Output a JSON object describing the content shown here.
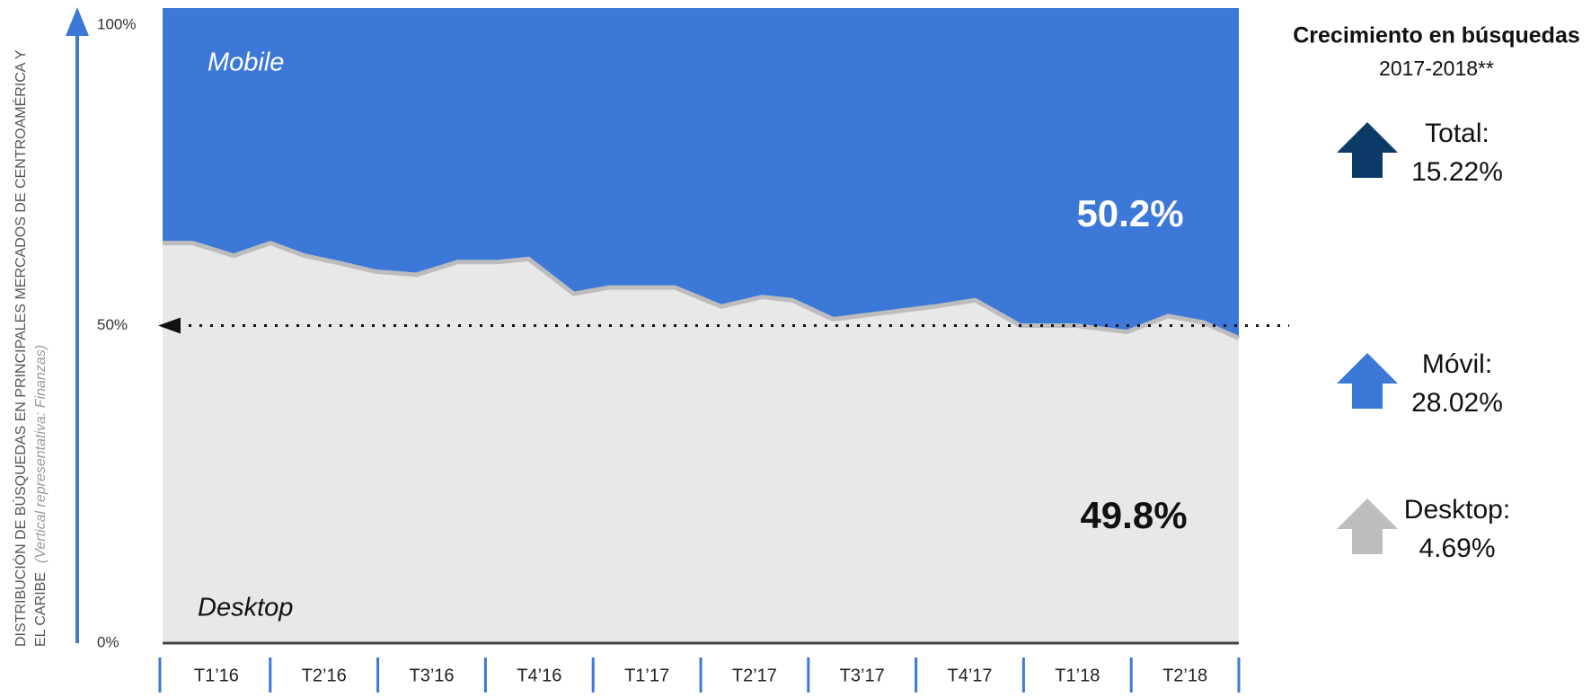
{
  "chart_data": {
    "type": "area",
    "y_axis_title": "DISTRIBUCIÓN DE BÚSQUEDAS EN PRINCIPALES MERCADOS DE CENTROAMÉRICA Y",
    "y_axis_title_line2": "EL CARIBE",
    "y_axis_subtitle": "(Vertical representativa: Finanzas)",
    "categories": [
      "T1’16",
      "T2’16",
      "T3’16",
      "T4’16",
      "T1’17",
      "T2’17",
      "T3’17",
      "T4’17",
      "T1’18",
      "T2’18"
    ],
    "x": [
      0,
      0.28,
      0.66,
      1.0,
      1.32,
      1.6,
      1.98,
      2.36,
      2.74,
      3.11,
      3.4,
      3.82,
      4.15,
      4.76,
      5.19,
      5.57,
      5.85,
      6.23,
      6.7,
      7.17,
      7.55,
      7.97,
      8.49,
      8.96,
      9.34,
      9.67,
      10
    ],
    "xlim": [
      0,
      10
    ],
    "series": [
      {
        "name": "Desktop",
        "color": "#e8e8e8",
        "values": [
          63,
          63,
          61,
          63,
          61,
          60,
          58.5,
          58,
          60,
          60,
          60.5,
          55,
          56,
          56,
          53,
          54.5,
          54,
          51,
          52,
          53,
          54,
          50,
          50,
          49,
          51.5,
          50.5,
          48
        ]
      },
      {
        "name": "Mobile",
        "color": "#3c78d8",
        "values": [
          37,
          37,
          39,
          37,
          39,
          40,
          41.5,
          42,
          40,
          40,
          39.5,
          45,
          44,
          44,
          47,
          45.5,
          46,
          49,
          48,
          47,
          46,
          50,
          50,
          51,
          48.5,
          49.5,
          52
        ]
      }
    ],
    "ylim": [
      0,
      100
    ],
    "yticks": [
      {
        "value": 0,
        "label": "0%"
      },
      {
        "value": 50,
        "label": "50%"
      },
      {
        "value": 100,
        "label": "100%"
      }
    ],
    "grid": false,
    "annotations": {
      "mobile_share": "50.2%",
      "desktop_share": "49.8%"
    },
    "reference_line": 50,
    "side_panel": {
      "title": "Crecimiento en búsquedas",
      "subtitle": "2017-2018**",
      "items": [
        {
          "label": "Total:",
          "value": "15.22%",
          "color": "#0b3a66"
        },
        {
          "label": "Móvil:",
          "value": "28.02%",
          "color": "#3c78d8"
        },
        {
          "label": "Desktop:",
          "value": "4.69%",
          "color": "#bdbdbd"
        }
      ]
    }
  }
}
